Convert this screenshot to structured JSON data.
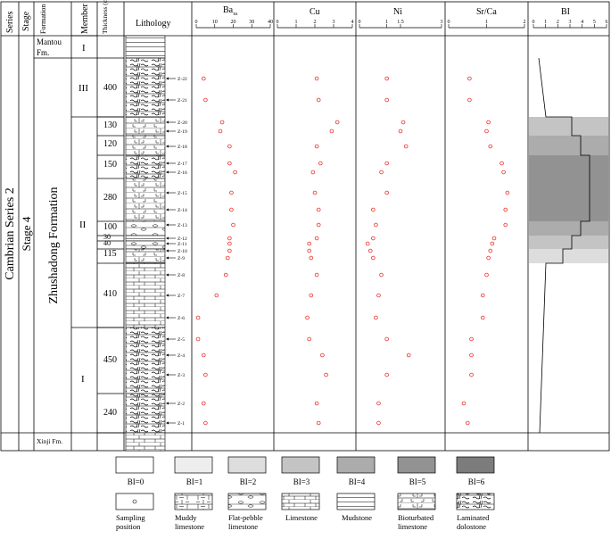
{
  "headers": {
    "series": "Series",
    "stage": "Stage",
    "formation": "Formation",
    "member": "Member",
    "thickness": "Thickness (cm)",
    "lithology": "Lithology",
    "ba": "Ba",
    "ba_sub": "xs",
    "cu": "Cu",
    "ni": "Ni",
    "srca": "Sr/Ca",
    "bi": "BI"
  },
  "strat": {
    "series": "Cambrian Series 2",
    "stage": "Stage 4",
    "formation_top": "Mantou",
    "formation_top2": "Fm.",
    "formation_main": "Zhushadong Formation",
    "formation_bottom": "Xinji Fm.",
    "member_top": "I",
    "member_3": "III",
    "member_2": "II",
    "member_1": "I"
  },
  "thickness_labels": [
    "400",
    "130",
    "120",
    "150",
    "280",
    "100",
    "30",
    "40",
    "115",
    "410",
    "450",
    "240"
  ],
  "samples": [
    "Z-22",
    "Z-21",
    "Z-20",
    "Z-19",
    "Z-18",
    "Z-17",
    "Z-16",
    "Z-15",
    "Z-14",
    "Z-13",
    "Z-12",
    "Z-11",
    "Z-10",
    "Z-9",
    "Z-8",
    "Z-7",
    "Z-6",
    "Z-5",
    "Z-4",
    "Z-3",
    "Z-2",
    "Z-1"
  ],
  "chart_data": {
    "type": "scatter",
    "series": [
      {
        "name": "Ba",
        "ticks": [
          "0",
          "10",
          "20",
          "30",
          "40"
        ],
        "xlim": [
          0,
          40
        ],
        "values": [
          4,
          5,
          14,
          13,
          18,
          18,
          21,
          19,
          19,
          20,
          18,
          18,
          18,
          17,
          16,
          11,
          1,
          1,
          4,
          5,
          4,
          5
        ]
      },
      {
        "name": "Cu",
        "ticks": [
          "0",
          "1",
          "2",
          "3",
          "4"
        ],
        "xlim": [
          0,
          4
        ],
        "values": [
          2.1,
          2.2,
          3.2,
          2.9,
          2.1,
          2.3,
          1.9,
          2.0,
          2.2,
          2.2,
          2.1,
          1.7,
          1.7,
          1.8,
          2.1,
          1.8,
          1.6,
          1.7,
          2.4,
          2.6,
          2.1,
          2.2
        ]
      },
      {
        "name": "Ni",
        "ticks": [
          "0",
          "1",
          "1.5",
          "3"
        ],
        "xlim": [
          0,
          3
        ],
        "values": [
          1.0,
          1.0,
          1.6,
          1.5,
          1.7,
          1.0,
          0.8,
          1.0,
          0.5,
          0.6,
          0.5,
          0.3,
          0.4,
          0.5,
          0.8,
          0.7,
          0.6,
          1.0,
          1.8,
          1.0,
          0.7,
          0.7
        ]
      },
      {
        "name": "Sr/Ca",
        "ticks": [
          "0",
          "1",
          "2"
        ],
        "xlim": [
          0,
          2
        ],
        "values": [
          0.55,
          0.55,
          1.05,
          1.0,
          1.1,
          1.4,
          1.45,
          1.55,
          1.5,
          1.5,
          1.2,
          1.15,
          1.1,
          1.05,
          1.0,
          0.9,
          0.9,
          0.6,
          0.6,
          0.6,
          0.4,
          0.5
        ]
      }
    ],
    "bi_ticks": [
      "0",
      "1",
      "2",
      "3",
      "4",
      "5",
      "6"
    ]
  },
  "legend": {
    "bi": [
      "BI=0",
      "BI=1",
      "BI=2",
      "BI=3",
      "BI=4",
      "BI=5",
      "BI=6"
    ],
    "bi_colors": [
      "#ffffff",
      "#eeeeee",
      "#dddddd",
      "#c4c4c4",
      "#acacac",
      "#929292",
      "#7c7c7c"
    ],
    "sampling": [
      "Sampling",
      "position"
    ],
    "muddy": [
      "Muddy",
      "limestone"
    ],
    "flat": [
      "Flat-pebble",
      "limestone"
    ],
    "limestone": [
      "Limestone"
    ],
    "mudstone": [
      "Mudstone"
    ],
    "bioturbated": [
      "Bioturbated",
      "limestone"
    ],
    "laminated": [
      "Laminated",
      "dolostone"
    ]
  }
}
